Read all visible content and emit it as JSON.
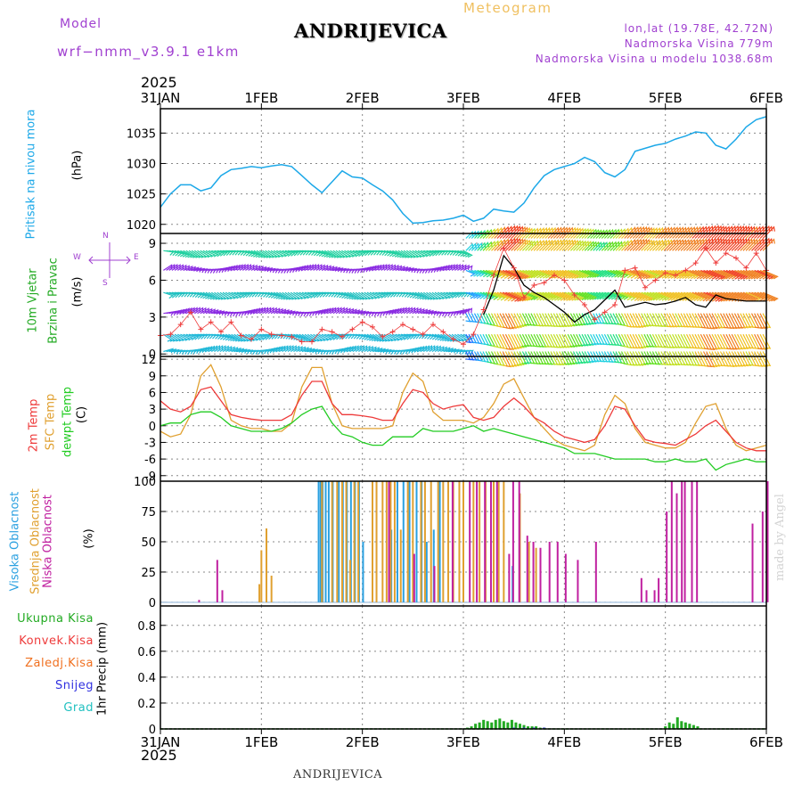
{
  "header": {
    "model_label": "Model",
    "model_name": "wrf−nmm_v3.9.1  e1km",
    "location": "ANDRIJEVICA",
    "product": "Meteogram",
    "coords": "lon,lat (19.78E, 42.72N)",
    "elevation": "Nadmorska Visina 779m",
    "model_elevation": "Nadmorska Visina u modelu 1038.68m",
    "year_top": "2025",
    "year_bottom": "2025"
  },
  "footer": {
    "location": "ANDRIJEVICA",
    "credit": "made by Angel"
  },
  "dates": [
    "31JAN",
    "1FEB",
    "2FEB",
    "3FEB",
    "4FEB",
    "5FEB",
    "6FEB"
  ],
  "colors": {
    "pressure": "#1ca8e8",
    "temp2m": "#ee3a3a",
    "sfc": "#e0a030",
    "dewpt": "#22cc22",
    "high_cloud": "#2aa0e0",
    "mid_cloud": "#e0a030",
    "low_cloud": "#c020a0",
    "total_precip": "#22aa22",
    "conv_precip": "#ee3a3a",
    "frz_precip": "#f07020",
    "snow": "#3030e0",
    "graupel": "#20c0c0",
    "wind_label": "#22aa22"
  },
  "panels": {
    "pressure": {
      "label": "Pritisak na nivou mora",
      "unit": "(hPa)",
      "yticks": [
        1020,
        1025,
        1030,
        1035
      ]
    },
    "wind": {
      "label1": "10m Vjetar",
      "label2": "Brzina i Pravac",
      "unit": "(m/s)",
      "yticks": [
        0,
        3,
        6,
        9
      ],
      "compass": {
        "n": "N",
        "s": "S",
        "e": "E",
        "w": "W"
      }
    },
    "temp": {
      "label1": "2m Temp",
      "label2": "SFC Temp",
      "label3": "dewpt Temp",
      "unit": "(C)",
      "yticks": [
        -9,
        -6,
        -3,
        0,
        3,
        6,
        9,
        12
      ]
    },
    "cloud": {
      "label1": "Visoka Oblacnost",
      "label2": "Srednja Oblacnost",
      "label3": "Niska Oblacnost",
      "unit": "(%)",
      "yticks": [
        0,
        25,
        50,
        75,
        100
      ]
    },
    "precip": {
      "label": "1hr Precip (mm)",
      "yticks": [
        0,
        0.2,
        0.4,
        0.6,
        0.8
      ],
      "legend": [
        "Ukupna Kisa",
        "Konvek.Kisa",
        "Zaledj.Kisa",
        "Snijeg",
        "Grad"
      ]
    }
  },
  "chart_data": [
    {
      "type": "line",
      "title": "",
      "ylabel": "Pritisak na nivou mora (hPa)",
      "ylim": [
        1018.5,
        1039
      ],
      "x_days": [
        0,
        0.1,
        0.2,
        0.3,
        0.4,
        0.5,
        0.6,
        0.7,
        0.8,
        0.9,
        1.0,
        1.1,
        1.2,
        1.3,
        1.4,
        1.5,
        1.6,
        1.7,
        1.8,
        1.9,
        2.0,
        2.1,
        2.2,
        2.3,
        2.4,
        2.5,
        2.6,
        2.7,
        2.8,
        2.9,
        3.0,
        3.1,
        3.2,
        3.3,
        3.4,
        3.5,
        3.6,
        3.7,
        3.8,
        3.9,
        4.0,
        4.1,
        4.2,
        4.3,
        4.4,
        4.5,
        4.6,
        4.7,
        4.8,
        4.9,
        5.0,
        5.1,
        5.2,
        5.3,
        5.4,
        5.5,
        5.6,
        5.7,
        5.8,
        5.9,
        6.0
      ],
      "series": [
        {
          "name": "Pritisak na nivou mora",
          "values": [
            1022.8,
            1025,
            1026.5,
            1026.5,
            1025.5,
            1026,
            1028,
            1029,
            1029.2,
            1029.5,
            1029.3,
            1029.6,
            1029.8,
            1029.5,
            1028,
            1026.5,
            1025.2,
            1027,
            1028.8,
            1027.8,
            1027.6,
            1026.5,
            1025.5,
            1024,
            1021.8,
            1020.2,
            1020.3,
            1020.6,
            1020.7,
            1021,
            1021.5,
            1020.5,
            1021,
            1022.5,
            1022.2,
            1022,
            1023.5,
            1026,
            1028,
            1029,
            1029.5,
            1030,
            1031,
            1030.3,
            1028.5,
            1027.8,
            1029,
            1032,
            1032.5,
            1033,
            1033.3,
            1034,
            1034.5,
            1035.2,
            1035,
            1033,
            1032.4,
            1034,
            1036,
            1037.2,
            1037.7
          ]
        }
      ]
    },
    {
      "type": "line",
      "title": "",
      "ylabel": "10m Vjetar Brzina i Pravac (m/s)",
      "ylim": [
        -0.2,
        9.8
      ],
      "x_days": [
        0,
        0.1,
        0.2,
        0.3,
        0.4,
        0.5,
        0.6,
        0.7,
        0.8,
        0.9,
        1.0,
        1.1,
        1.2,
        1.3,
        1.4,
        1.5,
        1.6,
        1.7,
        1.8,
        1.9,
        2.0,
        2.1,
        2.2,
        2.3,
        2.4,
        2.5,
        2.6,
        2.7,
        2.8,
        2.9,
        3.0,
        3.1,
        3.2,
        3.3,
        3.4,
        3.5,
        3.6,
        3.7,
        3.8,
        3.9,
        4.0,
        4.1,
        4.2,
        4.3,
        4.4,
        4.5,
        4.6,
        4.7,
        4.8,
        4.9,
        5.0,
        5.1,
        5.2,
        5.3,
        5.4,
        5.5,
        5.6,
        5.7,
        5.8,
        5.9,
        6.0
      ],
      "series": [
        {
          "name": "speed",
          "values": [
            1.5,
            1.6,
            2.4,
            3.4,
            2.0,
            2.6,
            1.8,
            2.6,
            1.5,
            1.2,
            2.0,
            1.6,
            1.5,
            1.4,
            1.0,
            1.0,
            2.0,
            1.8,
            1.4,
            2.0,
            2.6,
            2.2,
            1.4,
            1.8,
            2.4,
            2.0,
            1.6,
            2.4,
            1.8,
            1.2,
            0.8,
            1.6,
            3.6,
            6.4,
            8.6,
            7.0,
            4.6,
            5.6,
            5.8,
            6.4,
            6.0,
            4.8,
            4.0,
            2.8,
            3.4,
            4.0,
            6.8,
            7.0,
            5.4,
            6.0,
            6.6,
            6.4,
            6.8,
            7.4,
            8.6,
            7.4,
            8.2,
            7.8,
            7.0,
            8.2,
            6.8
          ]
        },
        {
          "name": "mean",
          "values": [
            null,
            null,
            null,
            null,
            null,
            null,
            null,
            null,
            null,
            null,
            null,
            null,
            null,
            null,
            null,
            1.0,
            null,
            null,
            null,
            null,
            null,
            null,
            null,
            null,
            null,
            null,
            null,
            null,
            null,
            null,
            null,
            null,
            3.2,
            5.2,
            8.0,
            7.0,
            5.6,
            5.0,
            4.6,
            4.0,
            3.4,
            2.6,
            3.2,
            3.6,
            4.4,
            5.2,
            3.8,
            4.0,
            4.2,
            4.0,
            4.1,
            4.3,
            4.6,
            4.0,
            3.8,
            4.8,
            4.5,
            4.4,
            4.3,
            4.3,
            4.3
          ]
        }
      ]
    },
    {
      "type": "line",
      "title": "",
      "ylabel": "(C)",
      "ylim": [
        -10,
        12.5
      ],
      "x_days": [
        0,
        0.1,
        0.2,
        0.3,
        0.4,
        0.5,
        0.6,
        0.7,
        0.8,
        0.9,
        1.0,
        1.1,
        1.2,
        1.3,
        1.4,
        1.5,
        1.6,
        1.7,
        1.8,
        1.9,
        2.0,
        2.1,
        2.2,
        2.3,
        2.4,
        2.5,
        2.6,
        2.7,
        2.8,
        2.9,
        3.0,
        3.1,
        3.2,
        3.3,
        3.4,
        3.5,
        3.6,
        3.7,
        3.8,
        3.9,
        4.0,
        4.1,
        4.2,
        4.3,
        4.4,
        4.5,
        4.6,
        4.7,
        4.8,
        4.9,
        5.0,
        5.1,
        5.2,
        5.3,
        5.4,
        5.5,
        5.6,
        5.7,
        5.8,
        5.9,
        6.0
      ],
      "series": [
        {
          "name": "2m Temp",
          "values": [
            4.5,
            3.0,
            2.5,
            3.5,
            6.5,
            7.0,
            4.5,
            2.0,
            1.5,
            1.2,
            1.0,
            1.0,
            1.0,
            2.0,
            5.5,
            8.0,
            8.0,
            4.0,
            2.0,
            2.0,
            1.8,
            1.5,
            1.0,
            1.0,
            4.0,
            6.5,
            6.0,
            4.0,
            3.0,
            3.5,
            3.8,
            1.5,
            1.0,
            1.5,
            3.5,
            5.0,
            3.5,
            1.5,
            0.5,
            -1.0,
            -2.0,
            -2.5,
            -3.0,
            -2.5,
            0.0,
            3.5,
            3.0,
            0.0,
            -2.5,
            -3.0,
            -3.2,
            -3.5,
            -2.5,
            -1.5,
            0.0,
            1.0,
            -1.0,
            -3.0,
            -4.0,
            -4.5,
            -4.5
          ]
        },
        {
          "name": "SFC Temp",
          "values": [
            -1.0,
            -2.0,
            -1.5,
            2.0,
            9.0,
            11.0,
            7.0,
            1.0,
            0.0,
            -0.5,
            -0.5,
            -1.0,
            -1.0,
            0.5,
            7.0,
            10.5,
            10.5,
            4.0,
            0.0,
            -0.5,
            -0.5,
            -0.5,
            -0.5,
            0.0,
            6.0,
            9.5,
            8.0,
            2.5,
            1.0,
            1.0,
            1.0,
            0.5,
            1.5,
            4.0,
            7.5,
            8.5,
            5.0,
            1.5,
            -0.5,
            -2.5,
            -3.5,
            -4.0,
            -4.5,
            -3.5,
            2.0,
            5.5,
            4.0,
            -0.5,
            -3.0,
            -3.5,
            -4.0,
            -4.0,
            -3.0,
            0.5,
            3.5,
            4.0,
            -0.5,
            -3.5,
            -4.5,
            -4.0,
            -3.5
          ]
        },
        {
          "name": "dewpt Temp",
          "values": [
            0.0,
            0.5,
            0.5,
            2.0,
            2.5,
            2.5,
            1.5,
            0.0,
            -0.5,
            -1.0,
            -1.0,
            -1.0,
            -0.5,
            0.5,
            2.0,
            3.0,
            3.5,
            0.5,
            -1.5,
            -2.0,
            -3.0,
            -3.5,
            -3.5,
            -2.0,
            -2.0,
            -2.0,
            -0.5,
            -1.0,
            -1.0,
            -1.0,
            -0.5,
            0.0,
            -1.0,
            -0.5,
            -1.0,
            -1.5,
            -2.0,
            -2.5,
            -3.0,
            -3.5,
            -4.0,
            -5.0,
            -5.0,
            -5.0,
            -5.5,
            -6.0,
            -6.0,
            -6.0,
            -6.0,
            -6.5,
            -6.5,
            -6.0,
            -6.5,
            -6.5,
            -6.0,
            -8.0,
            -7.0,
            -6.5,
            -6.0,
            -6.5,
            -6.5
          ]
        }
      ]
    },
    {
      "type": "bar",
      "title": "",
      "ylabel": "(%)",
      "ylim": [
        -3,
        100
      ],
      "series": [
        {
          "name": "Visoka Oblacnost",
          "x_days": [
            1.58,
            1.6,
            1.62,
            1.65,
            1.68,
            1.72,
            1.78,
            1.82,
            1.86,
            1.9,
            1.94,
            1.98,
            2.02,
            2.3,
            2.36,
            2.42,
            2.48,
            2.55,
            2.6,
            2.65,
            2.72,
            2.78,
            3.5
          ],
          "values": [
            100,
            100,
            100,
            100,
            100,
            100,
            100,
            100,
            100,
            100,
            100,
            100,
            50,
            60,
            100,
            100,
            100,
            100,
            100,
            50,
            60,
            100,
            30
          ]
        },
        {
          "name": "Srednja Oblacnost",
          "x_days": [
            0.98,
            1.0,
            1.05,
            1.1,
            1.6,
            1.7,
            1.75,
            1.8,
            1.84,
            1.88,
            1.92,
            1.96,
            2.1,
            2.14,
            2.2,
            2.24,
            2.28,
            2.32,
            2.38,
            2.45,
            2.5,
            2.58,
            2.62,
            2.68,
            2.75,
            2.8,
            2.85,
            2.9,
            2.96,
            3.0,
            3.1,
            3.16,
            3.22,
            3.3,
            3.35,
            3.4,
            3.56,
            3.65,
            3.72
          ],
          "values": [
            15,
            43,
            61,
            22,
            100,
            100,
            100,
            100,
            100,
            35,
            100,
            100,
            100,
            100,
            100,
            100,
            100,
            100,
            60,
            100,
            100,
            100,
            100,
            100,
            100,
            100,
            100,
            100,
            100,
            100,
            100,
            100,
            100,
            100,
            100,
            100,
            90,
            50,
            45
          ]
        },
        {
          "name": "Niska Oblacnost",
          "x_days": [
            0.37,
            0.55,
            0.6,
            2.25,
            2.5,
            2.7,
            2.88,
            3.05,
            3.12,
            3.2,
            3.26,
            3.32,
            3.44,
            3.48,
            3.54,
            3.62,
            3.68,
            3.75,
            3.84,
            3.92,
            4.0,
            4.12,
            4.3,
            4.75,
            4.8,
            4.88,
            4.92,
            5.0,
            5.05,
            5.1,
            5.15,
            5.18,
            5.25,
            5.3,
            5.85,
            5.95,
            6.0
          ],
          "values": [
            2,
            35,
            10,
            100,
            40,
            30,
            100,
            100,
            100,
            100,
            100,
            100,
            40,
            100,
            100,
            55,
            50,
            45,
            50,
            50,
            40,
            35,
            50,
            20,
            10,
            10,
            20,
            75,
            100,
            90,
            100,
            100,
            100,
            100,
            65,
            75,
            100
          ]
        }
      ]
    },
    {
      "type": "bar",
      "title": "",
      "ylabel": "1hr Precip (mm)",
      "ylim": [
        0,
        0.95
      ],
      "series": [
        {
          "name": "Ukupna Kisa",
          "x_days": [
            3.04,
            3.08,
            3.12,
            3.16,
            3.2,
            3.24,
            3.28,
            3.32,
            3.36,
            3.4,
            3.44,
            3.48,
            3.52,
            3.56,
            3.6,
            3.64,
            3.68,
            3.72,
            3.76,
            3.8,
            5.0,
            5.04,
            5.08,
            5.12,
            5.16,
            5.2,
            5.24,
            5.28,
            5.32
          ],
          "values": [
            0.01,
            0.02,
            0.04,
            0.05,
            0.07,
            0.06,
            0.05,
            0.07,
            0.08,
            0.06,
            0.05,
            0.07,
            0.05,
            0.04,
            0.03,
            0.02,
            0.02,
            0.02,
            0.01,
            0.01,
            0.02,
            0.05,
            0.04,
            0.09,
            0.06,
            0.05,
            0.04,
            0.03,
            0.02
          ]
        },
        {
          "name": "Snijeg",
          "x_days": [
            3.5,
            3.6,
            3.7,
            3.8
          ],
          "values": [
            0.01,
            0.01,
            0.01,
            0.01
          ]
        }
      ]
    }
  ]
}
